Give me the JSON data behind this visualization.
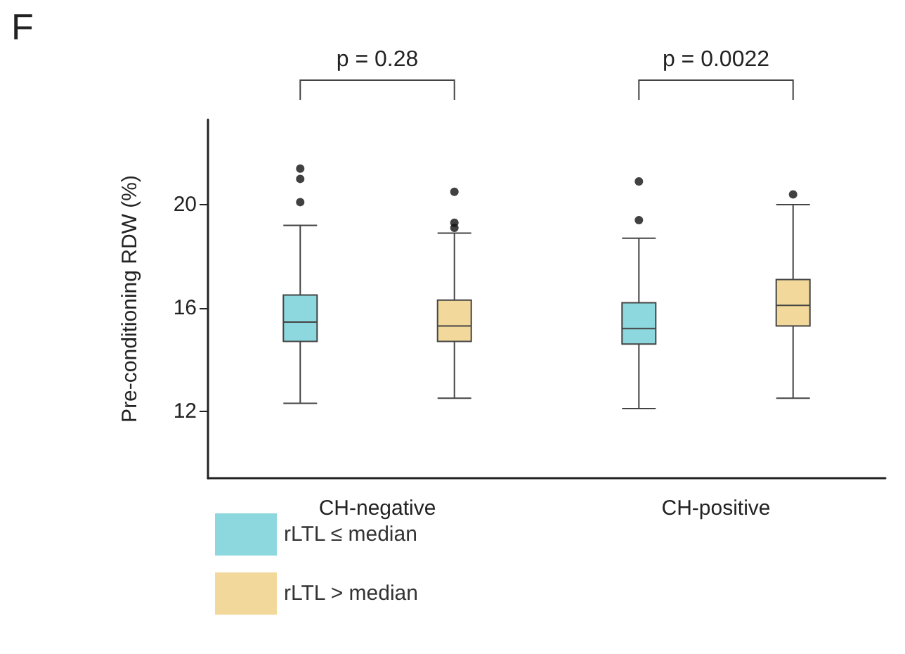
{
  "chart_data": {
    "type": "box",
    "ylabel": "Pre-conditioning RDW (%)",
    "categories": [
      "CH-negative",
      "CH-positive"
    ],
    "ylim": [
      9.4,
      23.3
    ],
    "yticks": [
      12,
      16,
      20
    ],
    "grid": false,
    "legend": "bottom left",
    "annotations": [
      "F",
      "p = 0.28",
      "p = 0.0022"
    ],
    "series": [
      {
        "name": "rLTL ≤ median",
        "color": "#8dd8df",
        "boxes": [
          {
            "low": 12.3,
            "q1": 14.7,
            "median": 15.45,
            "q3": 16.5,
            "high": 19.2,
            "outliers": [
              21.4,
              21.0,
              20.1
            ]
          },
          {
            "low": 12.1,
            "q1": 14.6,
            "median": 15.2,
            "q3": 16.2,
            "high": 18.7,
            "outliers": [
              20.9,
              19.4
            ]
          }
        ]
      },
      {
        "name": "rLTL > median",
        "color": "#f2d89a",
        "boxes": [
          {
            "low": 12.5,
            "q1": 14.7,
            "median": 15.3,
            "q3": 16.3,
            "high": 18.9,
            "outliers": [
              20.5,
              19.3,
              19.1
            ]
          },
          {
            "low": 12.5,
            "q1": 15.3,
            "median": 16.1,
            "q3": 17.1,
            "high": 20.0,
            "outliers": [
              20.4
            ]
          }
        ]
      }
    ]
  }
}
